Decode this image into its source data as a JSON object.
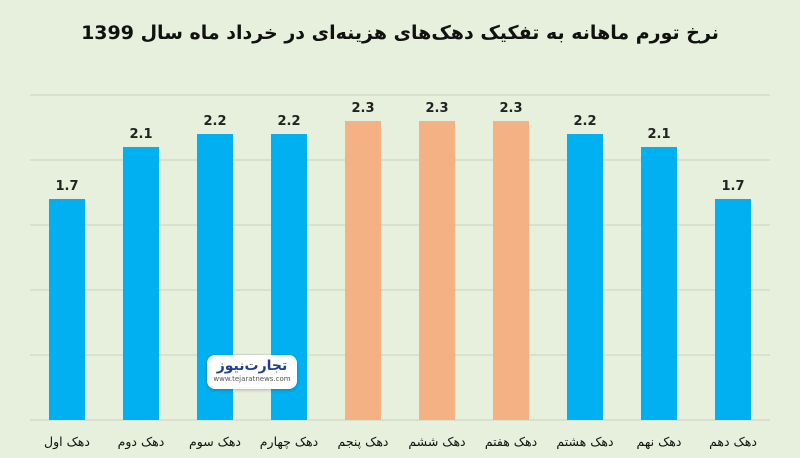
{
  "chart_data": {
    "type": "bar",
    "title": "نرخ تورم ماهانه به تفکیک دهک‌های هزینه‌ای در خرداد ماه سال 1399",
    "categories": [
      "دهک اول",
      "دهک دوم",
      "دهک سوم",
      "دهک چهارم",
      "دهک پنجم",
      "دهک ششم",
      "دهک هفتم",
      "دهک هشتم",
      "دهک نهم",
      "دهک دهم"
    ],
    "values": [
      1.7,
      2.1,
      2.2,
      2.2,
      2.3,
      2.3,
      2.3,
      2.2,
      2.1,
      1.7
    ],
    "value_labels": [
      "1.7",
      "2.1",
      "2.2",
      "2.2",
      "2.3",
      "2.3",
      "2.3",
      "2.2",
      "2.1",
      "1.7"
    ],
    "ylim": [
      0,
      2.5
    ],
    "grid": true,
    "colors": {
      "default": "#00b0f0",
      "highlight": "#f4b183",
      "highlight_indices": [
        4,
        5,
        6
      ],
      "grid": "#c8d3c0",
      "background": "#e6f0dc"
    }
  },
  "logo": {
    "text": "تجارت‌نیوز",
    "url": "www.tejaratnews.com"
  }
}
